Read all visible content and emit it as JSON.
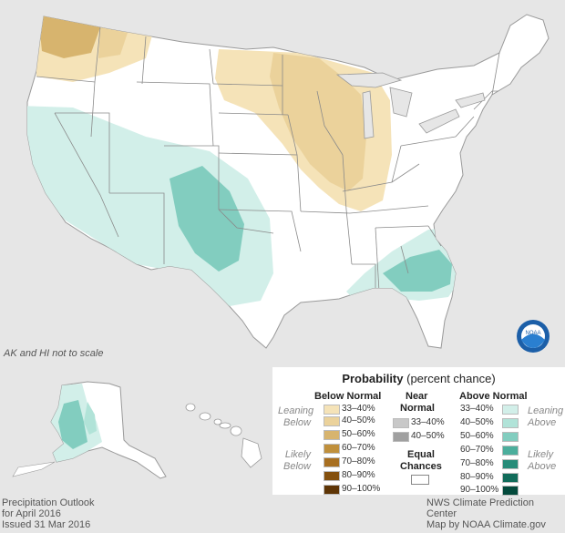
{
  "main_map": {
    "scale_note": "AK and HI not to scale",
    "logo_text": "NOAA"
  },
  "footer": {
    "left": [
      "Precipitation Outlook",
      "for April 2016",
      "Issued 31 Mar 2016"
    ],
    "right": [
      "NWS Climate Prediction Center",
      "Map by NOAA Climate.gov"
    ]
  },
  "legend": {
    "title_bold": "Probability",
    "title_rest": "(percent chance)",
    "below": {
      "heading": "Below Normal",
      "leaning_label": [
        "Leaning",
        "Below"
      ],
      "likely_label": [
        "Likely",
        "Below"
      ],
      "rows": [
        {
          "label": "33–40%",
          "color": "#f5e3b8"
        },
        {
          "label": "40–50%",
          "color": "#ebd29b"
        },
        {
          "label": "50–60%",
          "color": "#d7b46e"
        },
        {
          "label": "60–70%",
          "color": "#c0903c"
        },
        {
          "label": "70–80%",
          "color": "#a86f20"
        },
        {
          "label": "80–90%",
          "color": "#84500e"
        },
        {
          "label": "90–100%",
          "color": "#5e3506"
        }
      ]
    },
    "near": {
      "heading": [
        "Near",
        "Normal"
      ],
      "rows": [
        {
          "label": "33–40%",
          "color": "#c8c8c8"
        },
        {
          "label": "40–50%",
          "color": "#a0a0a0"
        }
      ]
    },
    "equal": {
      "heading": [
        "Equal",
        "Chances"
      ],
      "color": "#ffffff"
    },
    "above": {
      "heading": "Above Normal",
      "leaning_label": [
        "Leaning",
        "Above"
      ],
      "likely_label": [
        "Likely",
        "Above"
      ],
      "rows": [
        {
          "label": "33–40%",
          "color": "#d2efe9"
        },
        {
          "label": "40–50%",
          "color": "#b1e3d8"
        },
        {
          "label": "50–60%",
          "color": "#82cdbf"
        },
        {
          "label": "60–70%",
          "color": "#4cae9c"
        },
        {
          "label": "70–80%",
          "color": "#278c79"
        },
        {
          "label": "80–90%",
          "color": "#116c5a"
        },
        {
          "label": "90–100%",
          "color": "#044a3c"
        }
      ]
    }
  }
}
